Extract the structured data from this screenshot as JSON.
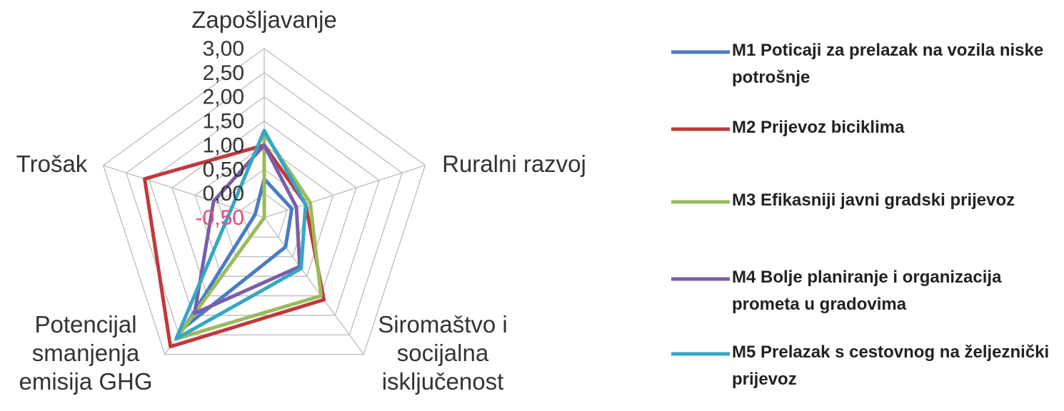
{
  "chart_data": {
    "type": "radar",
    "categories": [
      "Zapošljavanje",
      "Ruralni razvoj",
      "Siromaštvo i socijalna isključenost",
      "Potencijal smanjenja emisija GHG",
      "Trošak"
    ],
    "ylim": [
      -0.5,
      3
    ],
    "yticks": [
      {
        "value": -0.5,
        "label": "-0,50"
      },
      {
        "value": 0,
        "label": "0,00"
      },
      {
        "value": 0.5,
        "label": "0,50"
      },
      {
        "value": 1,
        "label": "1,00"
      },
      {
        "value": 1.5,
        "label": "1,50"
      },
      {
        "value": 2,
        "label": "2,00"
      },
      {
        "value": 2.5,
        "label": "2,50"
      },
      {
        "value": 3,
        "label": "3,00"
      }
    ],
    "negative_tick_color": "#e8467c",
    "grid": true,
    "legend": "right",
    "series": [
      {
        "name": "M1 Poticaji za prelazak na vozila niske potrošnje",
        "color": "#4a7cc4",
        "values": [
          0.3,
          0.1,
          0.25,
          2.3,
          -0.3
        ]
      },
      {
        "name": "M2 Prijevoz biciklima",
        "color": "#c0393c",
        "values": [
          1.0,
          0.4,
          1.6,
          2.8,
          2.1
        ]
      },
      {
        "name": "M3 Efikasniji javni gradski prijevoz",
        "color": "#9bbb59",
        "values": [
          1.25,
          0.5,
          1.5,
          2.6,
          -0.5
        ]
      },
      {
        "name": "M4 Bolje planiranje i organizacija prometa u gradovima",
        "color": "#7a5ea8",
        "values": [
          1.0,
          0.2,
          0.75,
          1.95,
          0.6
        ]
      },
      {
        "name": "M5 Prelazak s cestovnog  na željeznički prijevoz",
        "color": "#35a7c4",
        "values": [
          1.3,
          0.4,
          0.8,
          2.6,
          0.2
        ]
      }
    ]
  }
}
